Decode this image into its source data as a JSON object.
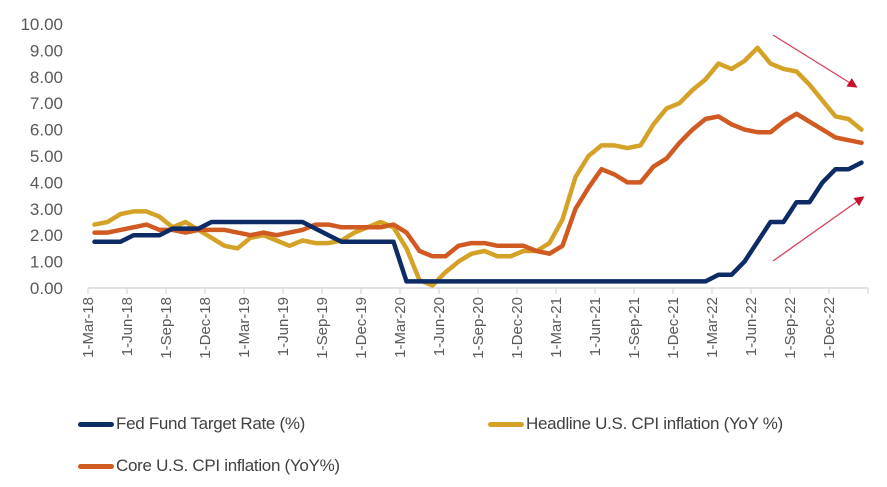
{
  "chart_data": {
    "type": "line",
    "title": "",
    "xlabel": "",
    "ylabel": "",
    "ylim": [
      0,
      10
    ],
    "yticks": [
      "0.00",
      "1.00",
      "2.00",
      "3.00",
      "4.00",
      "5.00",
      "6.00",
      "7.00",
      "8.00",
      "9.00",
      "10.00"
    ],
    "xtick_labels": [
      "1-Mar-18",
      "1-Jun-18",
      "1-Sep-18",
      "1-Dec-18",
      "1-Mar-19",
      "1-Jun-19",
      "1-Sep-19",
      "1-Dec-19",
      "1-Mar-20",
      "1-Jun-20",
      "1-Sep-20",
      "1-Dec-20",
      "1-Mar-21",
      "1-Jun-21",
      "1-Sep-21",
      "1-Dec-21",
      "1-Mar-22",
      "1-Jun-22",
      "1-Sep-22",
      "1-Dec-22"
    ],
    "x": [
      "Mar-18",
      "Apr-18",
      "May-18",
      "Jun-18",
      "Jul-18",
      "Aug-18",
      "Sep-18",
      "Oct-18",
      "Nov-18",
      "Dec-18",
      "Jan-19",
      "Feb-19",
      "Mar-19",
      "Apr-19",
      "May-19",
      "Jun-19",
      "Jul-19",
      "Aug-19",
      "Sep-19",
      "Oct-19",
      "Nov-19",
      "Dec-19",
      "Jan-20",
      "Feb-20",
      "Mar-20",
      "Apr-20",
      "May-20",
      "Jun-20",
      "Jul-20",
      "Aug-20",
      "Sep-20",
      "Oct-20",
      "Nov-20",
      "Dec-20",
      "Jan-21",
      "Feb-21",
      "Mar-21",
      "Apr-21",
      "May-21",
      "Jun-21",
      "Jul-21",
      "Aug-21",
      "Sep-21",
      "Oct-21",
      "Nov-21",
      "Dec-21",
      "Jan-22",
      "Feb-22",
      "Mar-22",
      "Apr-22",
      "May-22",
      "Jun-22",
      "Jul-22",
      "Aug-22",
      "Sep-22",
      "Oct-22",
      "Nov-22",
      "Dec-22",
      "Jan-23",
      "Feb-23"
    ],
    "series": [
      {
        "name": "Fed Fund Target Rate (%)",
        "color": "#0d2b64",
        "values": [
          1.75,
          1.75,
          1.75,
          2.0,
          2.0,
          2.0,
          2.25,
          2.25,
          2.25,
          2.5,
          2.5,
          2.5,
          2.5,
          2.5,
          2.5,
          2.5,
          2.5,
          2.25,
          2.0,
          1.75,
          1.75,
          1.75,
          1.75,
          1.75,
          0.25,
          0.25,
          0.25,
          0.25,
          0.25,
          0.25,
          0.25,
          0.25,
          0.25,
          0.25,
          0.25,
          0.25,
          0.25,
          0.25,
          0.25,
          0.25,
          0.25,
          0.25,
          0.25,
          0.25,
          0.25,
          0.25,
          0.25,
          0.25,
          0.5,
          0.5,
          1.0,
          1.75,
          2.5,
          2.5,
          3.25,
          3.25,
          4.0,
          4.5,
          4.5,
          4.75
        ]
      },
      {
        "name": "Headline U.S. CPI inflation (YoY %)",
        "color": "#d4a227",
        "values": [
          2.4,
          2.5,
          2.8,
          2.9,
          2.9,
          2.7,
          2.3,
          2.5,
          2.2,
          1.9,
          1.6,
          1.5,
          1.9,
          2.0,
          1.8,
          1.6,
          1.8,
          1.7,
          1.7,
          1.8,
          2.1,
          2.3,
          2.5,
          2.3,
          1.5,
          0.3,
          0.1,
          0.6,
          1.0,
          1.3,
          1.4,
          1.2,
          1.2,
          1.4,
          1.4,
          1.7,
          2.6,
          4.2,
          5.0,
          5.4,
          5.4,
          5.3,
          5.4,
          6.2,
          6.8,
          7.0,
          7.5,
          7.9,
          8.5,
          8.3,
          8.6,
          9.1,
          8.5,
          8.3,
          8.2,
          7.7,
          7.1,
          6.5,
          6.4,
          6.0
        ]
      },
      {
        "name": "Core U.S. CPI inflation (YoY%)",
        "color": "#d05a22",
        "values": [
          2.1,
          2.1,
          2.2,
          2.3,
          2.4,
          2.2,
          2.2,
          2.1,
          2.2,
          2.2,
          2.2,
          2.1,
          2.0,
          2.1,
          2.0,
          2.1,
          2.2,
          2.4,
          2.4,
          2.3,
          2.3,
          2.3,
          2.3,
          2.4,
          2.1,
          1.4,
          1.2,
          1.2,
          1.6,
          1.7,
          1.7,
          1.6,
          1.6,
          1.6,
          1.4,
          1.3,
          1.6,
          3.0,
          3.8,
          4.5,
          4.3,
          4.0,
          4.0,
          4.6,
          4.9,
          5.5,
          6.0,
          6.4,
          6.5,
          6.2,
          6.0,
          5.9,
          5.9,
          6.3,
          6.6,
          6.3,
          6.0,
          5.7,
          5.6,
          5.5
        ]
      }
    ],
    "legend": [
      "Fed Fund Target Rate (%)",
      "Headline U.S. CPI inflation (YoY %)",
      "Core U.S. CPI inflation (YoY%)"
    ],
    "legend_position": "bottom",
    "grid": false,
    "annotations": [
      {
        "type": "arrow",
        "direction": "down-right",
        "color": "#c8102e",
        "meaning": "inflation trending down"
      },
      {
        "type": "arrow",
        "direction": "up-right",
        "color": "#c8102e",
        "meaning": "fed rate trending up"
      }
    ]
  }
}
